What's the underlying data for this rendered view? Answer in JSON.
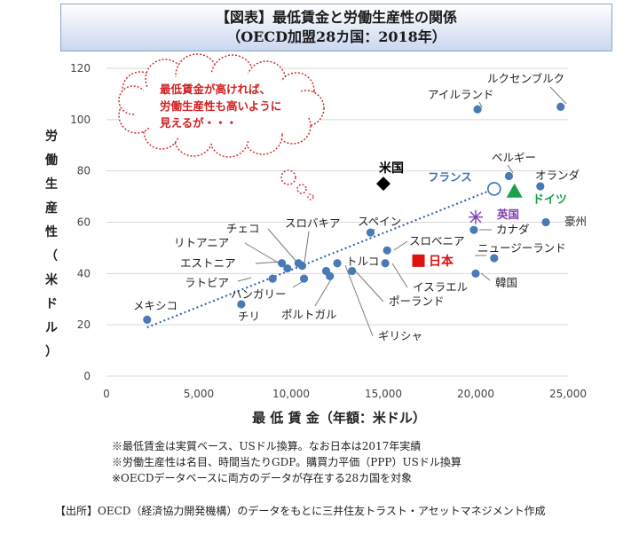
{
  "title": {
    "line1": "【図表】最低賃金と労働生産性の関係",
    "line2": "（OECD加盟28カ国：2018年）"
  },
  "chart_data": {
    "type": "scatter",
    "xlabel": "最 低 賃 金（年額：米ドル）",
    "ylabel": "労働生産性（米ドル）",
    "xlim": [
      0,
      25000
    ],
    "ylim": [
      0,
      120
    ],
    "xticks": [
      "0",
      "5,000",
      "10,000",
      "15,000",
      "20,000",
      "25,000"
    ],
    "yticks": [
      "0",
      "20",
      "40",
      "60",
      "80",
      "100",
      "120"
    ],
    "points": [
      {
        "label": "メキシコ",
        "x": 2200,
        "y": 22
      },
      {
        "label": "チリ",
        "x": 7300,
        "y": 28
      },
      {
        "label": "ラトビア",
        "x": 9000,
        "y": 38
      },
      {
        "label": "エストニア",
        "x": 9500,
        "y": 44
      },
      {
        "label": "リトアニア",
        "x": 9800,
        "y": 42
      },
      {
        "label": "チェコ",
        "x": 10400,
        "y": 44
      },
      {
        "label": "スロバキア",
        "x": 10600,
        "y": 43
      },
      {
        "label": "ハンガリー",
        "x": 10700,
        "y": 38
      },
      {
        "label": "ポーランド",
        "x": 11900,
        "y": 41
      },
      {
        "label": "ポルトガル",
        "x": 12100,
        "y": 39
      },
      {
        "label": "ギリシャ",
        "x": 12500,
        "y": 44
      },
      {
        "label": "トルコ",
        "x": 13300,
        "y": 41
      },
      {
        "label": "スペイン",
        "x": 14300,
        "y": 56
      },
      {
        "label": "スロベニア",
        "x": 15200,
        "y": 49
      },
      {
        "label": "イスラエル",
        "x": 15100,
        "y": 44
      },
      {
        "label": "カナダ",
        "x": 19900,
        "y": 57
      },
      {
        "label": "韓国",
        "x": 20000,
        "y": 40
      },
      {
        "label": "ニュージーランド",
        "x": 21000,
        "y": 46
      },
      {
        "label": "ベルギー",
        "x": 21800,
        "y": 78
      },
      {
        "label": "オランダ",
        "x": 23500,
        "y": 74
      },
      {
        "label": "豪州",
        "x": 23800,
        "y": 60
      },
      {
        "label": "アイルランド",
        "x": 20100,
        "y": 104
      },
      {
        "label": "ルクセンブルク",
        "x": 24600,
        "y": 105
      }
    ],
    "highlights": [
      {
        "label": "米国",
        "x": 15000,
        "y": 75,
        "marker": "diamond",
        "color": "#000000"
      },
      {
        "label": "日本",
        "x": 16900,
        "y": 45,
        "marker": "square",
        "color": "#e01010"
      },
      {
        "label": "フランス",
        "x": 21000,
        "y": 73,
        "marker": "ring",
        "color": "#3d6fb8"
      },
      {
        "label": "ドイツ",
        "x": 22100,
        "y": 72,
        "marker": "triangle",
        "color": "#1aa04a"
      },
      {
        "label": "英国",
        "x": 20000,
        "y": 62,
        "marker": "star",
        "color": "#8040b0"
      }
    ],
    "trendline": {
      "x": [
        2200,
        21000
      ],
      "y": [
        19,
        73
      ]
    },
    "annotation": [
      "最低賃金が高ければ、",
      "労働生産性も高いように",
      "見えるが・・・"
    ],
    "colors": {
      "point": "#4a7ab5",
      "trend": "#2d5fa8",
      "annotation": "#d02020",
      "leader": "#7a7a7a"
    }
  },
  "notes": [
    "※最低賃金は実質ベース、USドル換算。なお日本は2017年実績",
    "※労働生産性は名目、時間当たりGDP。購買力平価（PPP）USドル換算",
    "※OECDデータベースに両方のデータが存在する28カ国を対象"
  ],
  "source": "【出所】OECD（経済協力開発機構）のデータをもとに三井住友トラスト・アセットマネジメント作成"
}
